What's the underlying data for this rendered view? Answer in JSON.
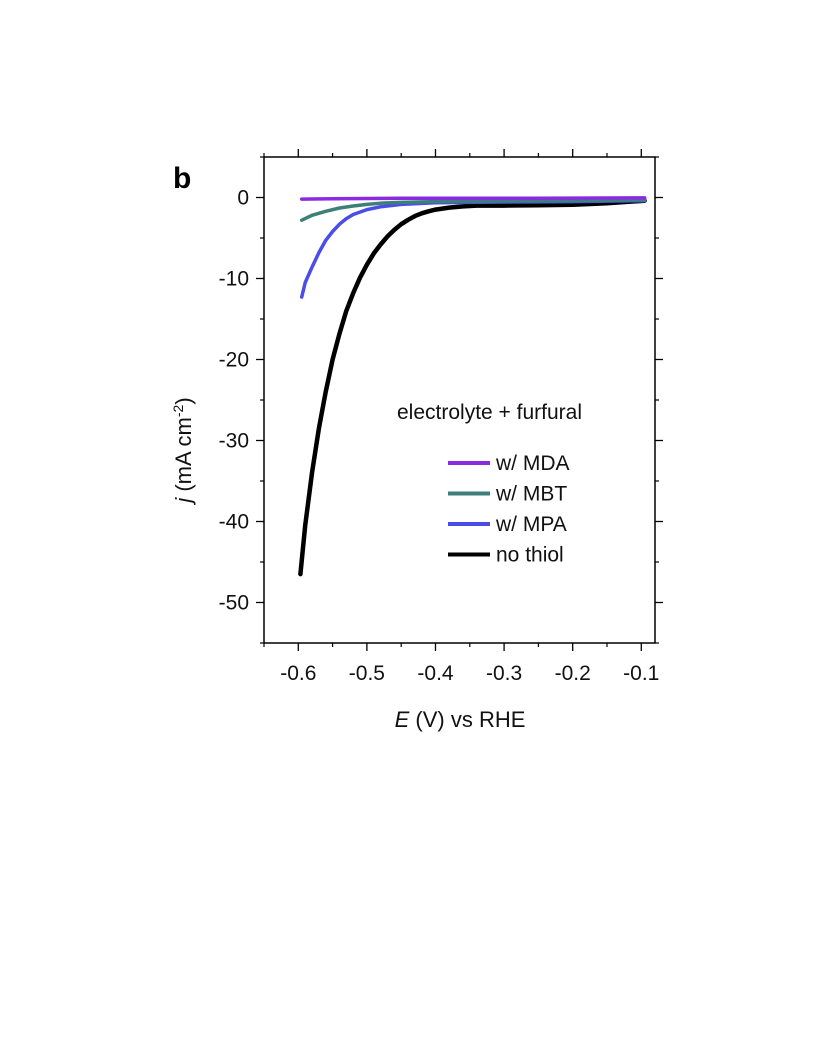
{
  "chart_data": {
    "type": "line",
    "panel_label": "b",
    "xlabel_italic": "E",
    "xlabel_rest": " (V) vs RHE",
    "ylabel_italic": "j",
    "ylabel_rest": " (mA cm",
    "ylabel_sup": "-2",
    "ylabel_close": ")",
    "xlim": [
      -0.65,
      -0.08
    ],
    "ylim": [
      -55,
      5
    ],
    "xticks": [
      -0.6,
      -0.5,
      -0.4,
      -0.3,
      -0.2,
      -0.1
    ],
    "xtick_labels": [
      "-0.6",
      "-0.5",
      "-0.4",
      "-0.3",
      "-0.2",
      "-0.1"
    ],
    "yticks": [
      0,
      -10,
      -20,
      -30,
      -40,
      -50
    ],
    "ytick_labels": [
      "0",
      "-10",
      "-20",
      "-30",
      "-40",
      "-50"
    ],
    "grid": false,
    "legend_title": "electrolyte + furfural",
    "legend_position": "right-middle",
    "series": [
      {
        "name": "w/ MDA",
        "color": "#8a2be2",
        "x": [
          -0.595,
          -0.55,
          -0.5,
          -0.45,
          -0.4,
          -0.35,
          -0.3,
          -0.25,
          -0.2,
          -0.15,
          -0.095
        ],
        "y": [
          -0.2,
          -0.15,
          -0.12,
          -0.1,
          -0.1,
          -0.1,
          -0.1,
          -0.1,
          -0.08,
          -0.06,
          -0.05
        ]
      },
      {
        "name": "w/ MBT",
        "color": "#3d7f7a",
        "x": [
          -0.595,
          -0.58,
          -0.56,
          -0.54,
          -0.52,
          -0.5,
          -0.48,
          -0.45,
          -0.4,
          -0.3,
          -0.2,
          -0.095
        ],
        "y": [
          -2.8,
          -2.2,
          -1.7,
          -1.3,
          -1.05,
          -0.85,
          -0.7,
          -0.6,
          -0.5,
          -0.45,
          -0.4,
          -0.3
        ]
      },
      {
        "name": "w/ MPA",
        "color": "#4a4de8",
        "x": [
          -0.595,
          -0.59,
          -0.58,
          -0.57,
          -0.56,
          -0.55,
          -0.54,
          -0.53,
          -0.52,
          -0.5,
          -0.48,
          -0.45,
          -0.4,
          -0.3,
          -0.2,
          -0.095
        ],
        "y": [
          -12.3,
          -10.5,
          -8.6,
          -6.8,
          -5.3,
          -4.2,
          -3.3,
          -2.6,
          -2.1,
          -1.5,
          -1.15,
          -0.85,
          -0.65,
          -0.55,
          -0.5,
          -0.4
        ]
      },
      {
        "name": "no thiol",
        "color": "#000000",
        "x": [
          -0.597,
          -0.59,
          -0.58,
          -0.57,
          -0.56,
          -0.55,
          -0.54,
          -0.53,
          -0.52,
          -0.51,
          -0.5,
          -0.49,
          -0.48,
          -0.47,
          -0.46,
          -0.45,
          -0.44,
          -0.43,
          -0.42,
          -0.41,
          -0.4,
          -0.38,
          -0.36,
          -0.34,
          -0.3,
          -0.25,
          -0.2,
          -0.15,
          -0.095
        ],
        "y": [
          -46.5,
          -40.5,
          -34.0,
          -28.5,
          -24.0,
          -20.0,
          -16.8,
          -14.0,
          -11.8,
          -9.9,
          -8.3,
          -6.9,
          -5.8,
          -4.8,
          -4.0,
          -3.3,
          -2.75,
          -2.3,
          -1.95,
          -1.7,
          -1.5,
          -1.25,
          -1.1,
          -1.0,
          -1.0,
          -0.95,
          -0.9,
          -0.7,
          -0.4
        ]
      }
    ]
  }
}
